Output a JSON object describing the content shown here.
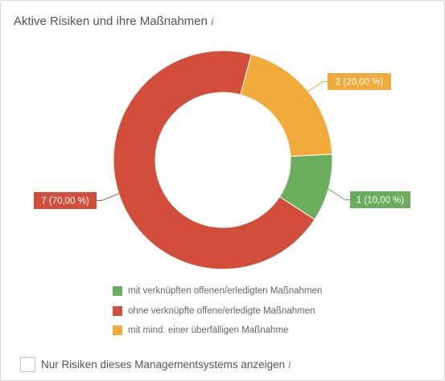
{
  "widget": {
    "title": "Aktive Risiken und ihre Maßnahmen",
    "info_glyph": "i"
  },
  "chart_data": {
    "type": "pie",
    "variant": "donut",
    "title": "Aktive Risiken und ihre Maßnahmen",
    "slices": [
      {
        "label": "mit mind. einer überfälligen Maßnahme",
        "value": 2,
        "percent": 20,
        "data_label": "2 (20,00 %)",
        "color": "#f2aa3b"
      },
      {
        "label": "mit verknüpften offenen/erledigten Maßnahmen",
        "value": 1,
        "percent": 10,
        "data_label": "1 (10,00 %)",
        "color": "#6aad5a"
      },
      {
        "label": "ohne verknüpfte offene/erledigte Maßnahmen",
        "value": 7,
        "percent": 70,
        "data_label": "7 (70,00 %)",
        "color": "#d34d3b"
      }
    ],
    "legend_position": "bottom",
    "legend": [
      {
        "label": "mit verknüpften offenen/erledigten Maßnahmen",
        "color": "#6aad5a"
      },
      {
        "label": "ohne verknüpfte offene/erledigte Maßnahmen",
        "color": "#d34d3b"
      },
      {
        "label": "mit mind. einer überfälligen Maßnahme",
        "color": "#f2aa3b"
      }
    ]
  },
  "footer": {
    "checkbox_checked": false,
    "checkbox_label": "Nur Risiken dieses Managementsystems anzeigen",
    "info_glyph": "i"
  }
}
